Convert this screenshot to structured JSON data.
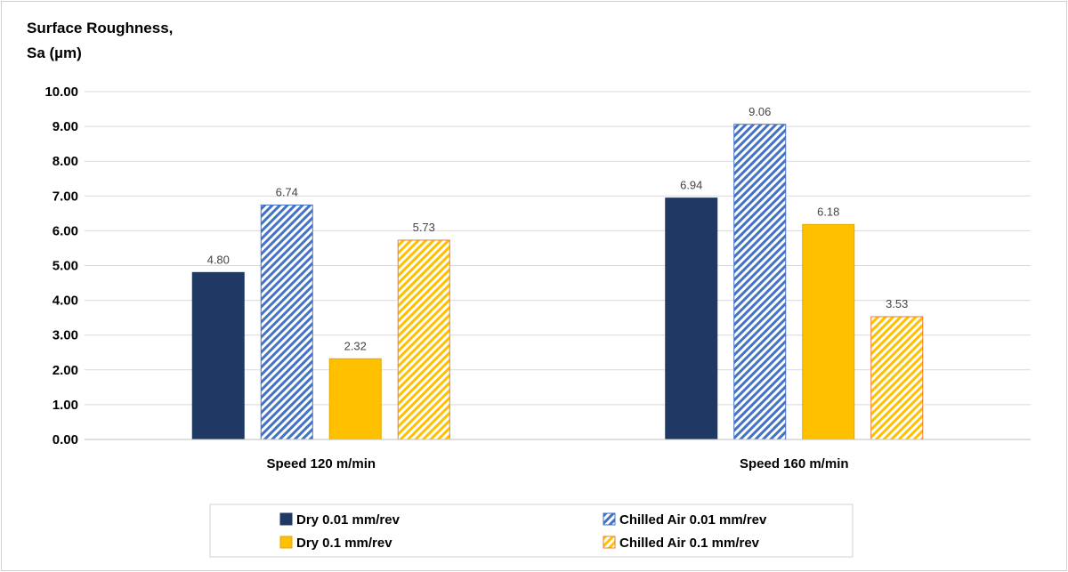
{
  "chart_data": {
    "type": "bar",
    "title": "",
    "ylabel_lines": [
      "Surface Roughness,",
      "Sa (µm)"
    ],
    "xlabel": "",
    "categories": [
      "Speed 120 m/min",
      "Speed 160 m/min"
    ],
    "ylim": [
      0,
      10
    ],
    "ytick_step": 1,
    "ytick_labels": [
      "0.00",
      "1.00",
      "2.00",
      "3.00",
      "4.00",
      "5.00",
      "6.00",
      "7.00",
      "8.00",
      "9.00",
      "10.00"
    ],
    "grid": true,
    "legend_position": "bottom",
    "series": [
      {
        "name": "Dry 0.01 mm/rev",
        "values": [
          4.8,
          6.94
        ],
        "labels": [
          "4.80",
          "6.94"
        ],
        "color": "#1f3864",
        "pattern": "solid",
        "stroke": "#1f3864"
      },
      {
        "name": "Chilled Air 0.01 mm/rev",
        "values": [
          6.74,
          9.06
        ],
        "labels": [
          "6.74",
          "9.06"
        ],
        "color": "#4472c4",
        "pattern": "hatch",
        "stroke": "#4472c4"
      },
      {
        "name": "Dry 0.1 mm/rev",
        "values": [
          2.32,
          6.18
        ],
        "labels": [
          "2.32",
          "6.18"
        ],
        "color": "#ffc000",
        "pattern": "solid",
        "stroke": "#e0a800"
      },
      {
        "name": "Chilled Air 0.1 mm/rev",
        "values": [
          5.73,
          3.53
        ],
        "labels": [
          "5.73",
          "3.53"
        ],
        "color": "#ffc000",
        "pattern": "hatch",
        "stroke": "#ed7d31"
      }
    ]
  }
}
